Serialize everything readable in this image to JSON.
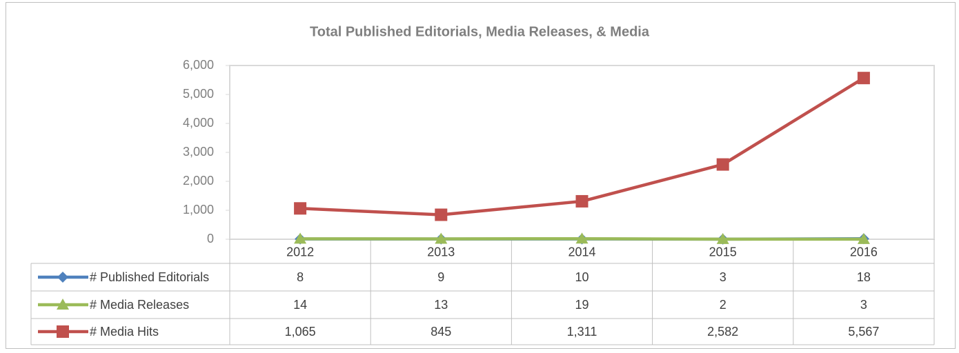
{
  "chart_data": {
    "type": "line",
    "title": "Total Published Editorials, Media Releases, & Media",
    "categories": [
      "2012",
      "2013",
      "2014",
      "2015",
      "2016"
    ],
    "series": [
      {
        "name": "# Published Editorials",
        "color": "#4f81bd",
        "marker": "diamond",
        "values": [
          8,
          9,
          10,
          3,
          18
        ]
      },
      {
        "name": "# Media Releases",
        "color": "#9bbb59",
        "marker": "triangle",
        "values": [
          14,
          13,
          19,
          2,
          3
        ]
      },
      {
        "name": "# Media Hits",
        "color": "#c0504d",
        "marker": "square",
        "values": [
          1065,
          845,
          1311,
          2582,
          5567
        ],
        "value_labels": [
          "1,065",
          "845",
          "1,311",
          "2,582",
          "5,567"
        ]
      }
    ],
    "ylim": [
      0,
      6000
    ],
    "yticks": [
      0,
      {
        "value": 1000,
        "label": "1,000"
      },
      {
        "value": 2000,
        "label": "2,000"
      },
      {
        "value": 3000,
        "label": "3,000"
      },
      {
        "value": 4000,
        "label": "4,000"
      },
      {
        "value": 5000,
        "label": "5,000"
      },
      {
        "value": 6000,
        "label": "6,000"
      }
    ],
    "grid": false
  }
}
